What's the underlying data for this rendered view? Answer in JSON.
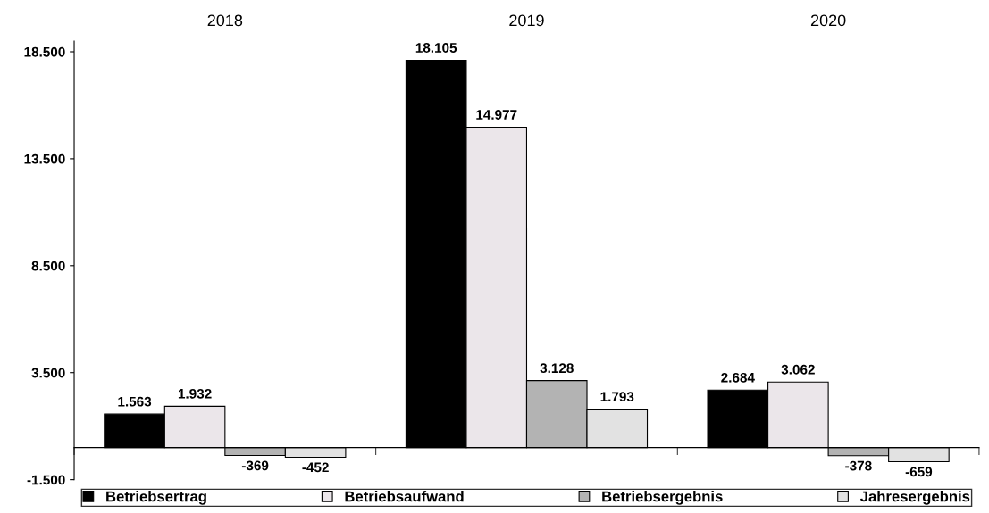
{
  "chart_data": {
    "type": "bar",
    "categories": [
      "2018",
      "2019",
      "2020"
    ],
    "series": [
      {
        "name": "Betriebsertrag",
        "color": "#000000",
        "values": [
          1563,
          18105,
          2684
        ],
        "value_labels": [
          "1.563",
          "18.105",
          "2.684"
        ]
      },
      {
        "name": "Betriebsaufwand",
        "color": "#ebe6ea",
        "values": [
          1932,
          14977,
          3062
        ],
        "value_labels": [
          "1.932",
          "14.977",
          "3.062"
        ]
      },
      {
        "name": "Betriebsergebnis",
        "color": "#b3b3b3",
        "values": [
          -369,
          3128,
          -378
        ],
        "value_labels": [
          "-369",
          "3.128",
          "-378"
        ]
      },
      {
        "name": "Jahresergebnis",
        "color": "#e2e2e2",
        "values": [
          -452,
          1793,
          -659
        ],
        "value_labels": [
          "-452",
          "1.793",
          "-659"
        ]
      }
    ],
    "ylim": [
      -1500,
      19000
    ],
    "yticks": [
      {
        "value": -1500,
        "label": "-1.500"
      },
      {
        "value": 3500,
        "label": "3.500"
      },
      {
        "value": 8500,
        "label": "8.500"
      },
      {
        "value": 13500,
        "label": "13.500"
      },
      {
        "value": 18500,
        "label": "18.500"
      }
    ],
    "grid": false,
    "legend": "bottom"
  }
}
